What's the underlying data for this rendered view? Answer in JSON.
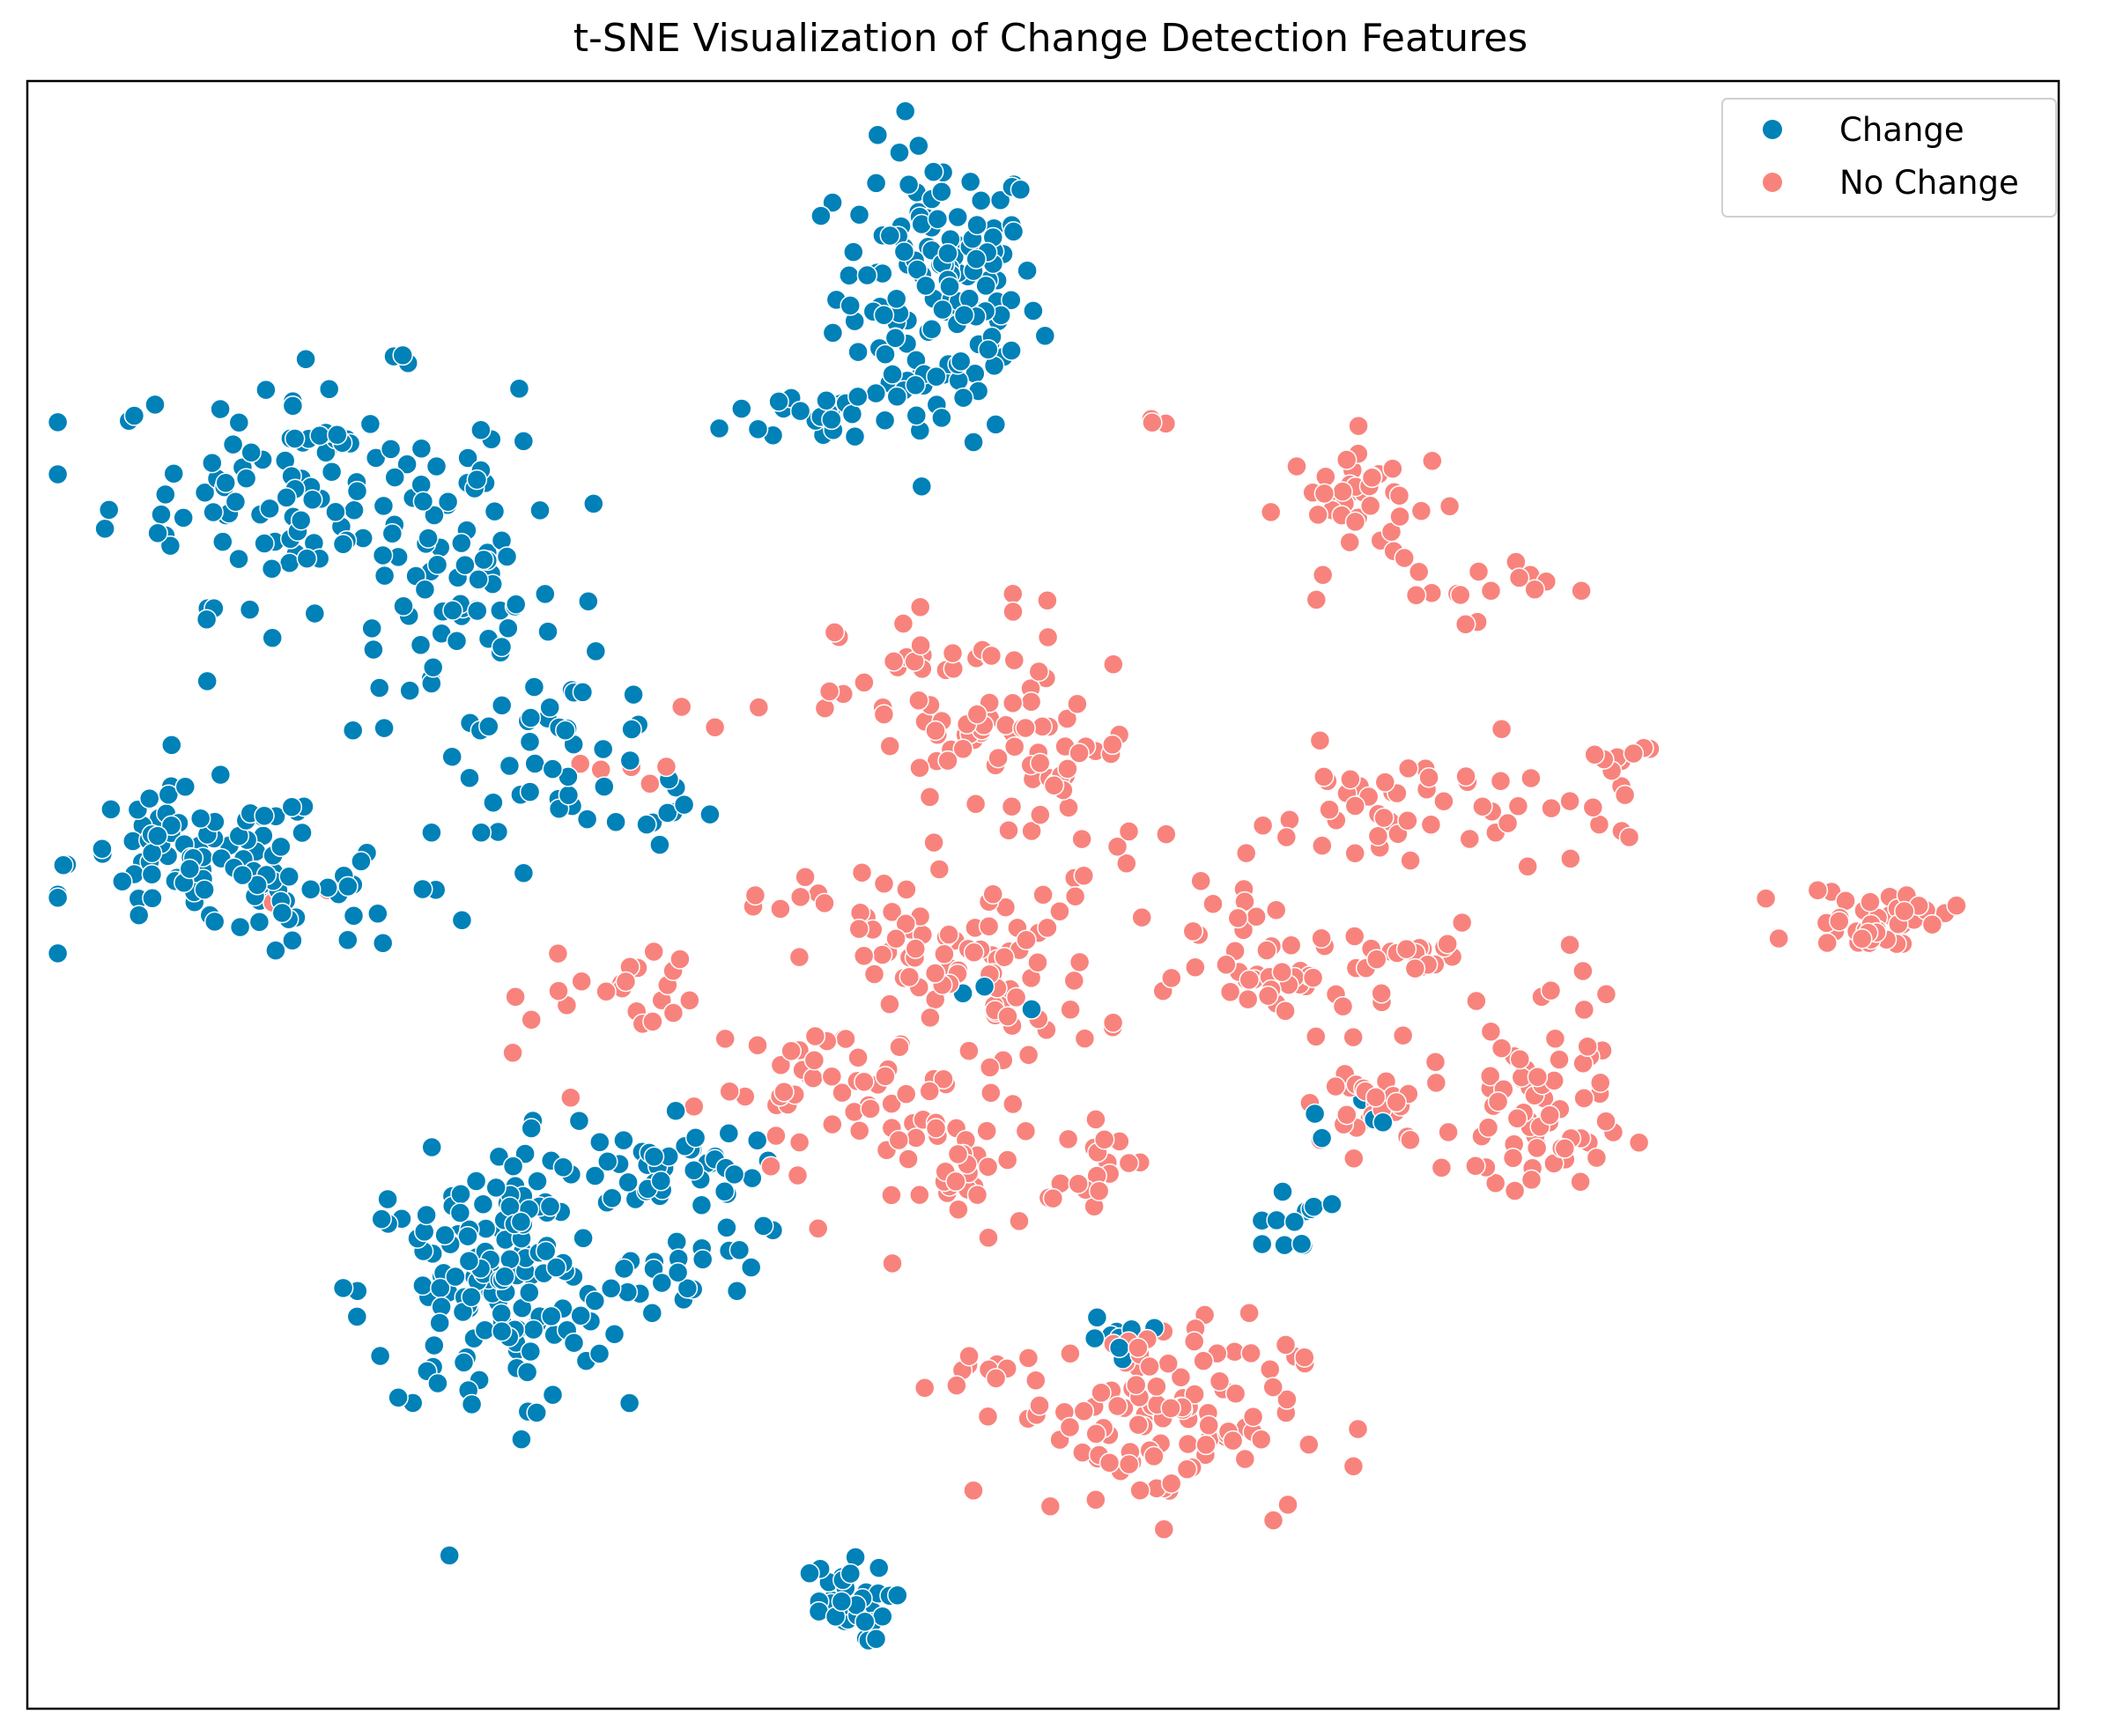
{
  "chart_data": {
    "type": "scatter",
    "title": "t-SNE Visualization of Change Detection Features",
    "xlabel": "",
    "ylabel": "",
    "axis_ticks": false,
    "grid": false,
    "legend_position": "top-right",
    "colors": {
      "Change": "#0081b8",
      "No Change": "#f8837d"
    },
    "series": [
      {
        "name": "Change",
        "clusters": [
          {
            "cx": 0.448,
            "cy": 0.869,
            "sx": 0.025,
            "sy": 0.045,
            "n": 150
          },
          {
            "cx": 0.395,
            "cy": 0.795,
            "sx": 0.025,
            "sy": 0.01,
            "n": 25
          },
          {
            "cx": 0.14,
            "cy": 0.75,
            "sx": 0.05,
            "sy": 0.035,
            "n": 120
          },
          {
            "cx": 0.21,
            "cy": 0.675,
            "sx": 0.025,
            "sy": 0.04,
            "n": 60
          },
          {
            "cx": 0.085,
            "cy": 0.52,
            "sx": 0.032,
            "sy": 0.022,
            "n": 90
          },
          {
            "cx": 0.16,
            "cy": 0.5,
            "sx": 0.035,
            "sy": 0.02,
            "n": 30
          },
          {
            "cx": 0.265,
            "cy": 0.59,
            "sx": 0.025,
            "sy": 0.025,
            "n": 35
          },
          {
            "cx": 0.31,
            "cy": 0.555,
            "sx": 0.02,
            "sy": 0.01,
            "n": 10
          },
          {
            "cx": 0.225,
            "cy": 0.255,
            "sx": 0.03,
            "sy": 0.04,
            "n": 130
          },
          {
            "cx": 0.25,
            "cy": 0.305,
            "sx": 0.012,
            "sy": 0.03,
            "n": 25
          },
          {
            "cx": 0.305,
            "cy": 0.335,
            "sx": 0.025,
            "sy": 0.018,
            "n": 40
          },
          {
            "cx": 0.345,
            "cy": 0.305,
            "sx": 0.012,
            "sy": 0.025,
            "n": 20
          },
          {
            "cx": 0.3,
            "cy": 0.26,
            "sx": 0.02,
            "sy": 0.015,
            "n": 15
          },
          {
            "cx": 0.4,
            "cy": 0.065,
            "sx": 0.012,
            "sy": 0.012,
            "n": 35
          },
          {
            "cx": 0.54,
            "cy": 0.225,
            "sx": 0.008,
            "sy": 0.008,
            "n": 10
          },
          {
            "cx": 0.62,
            "cy": 0.3,
            "sx": 0.01,
            "sy": 0.01,
            "n": 12
          },
          {
            "cx": 0.48,
            "cy": 0.44,
            "sx": 0.01,
            "sy": 0.008,
            "n": 5
          },
          {
            "cx": 0.65,
            "cy": 0.36,
            "sx": 0.01,
            "sy": 0.01,
            "n": 5
          }
        ]
      },
      {
        "name": "No Change",
        "clusters": [
          {
            "cx": 0.46,
            "cy": 0.61,
            "sx": 0.03,
            "sy": 0.035,
            "n": 70
          },
          {
            "cx": 0.515,
            "cy": 0.575,
            "sx": 0.02,
            "sy": 0.04,
            "n": 30
          },
          {
            "cx": 0.47,
            "cy": 0.45,
            "sx": 0.03,
            "sy": 0.03,
            "n": 80
          },
          {
            "cx": 0.43,
            "cy": 0.48,
            "sx": 0.012,
            "sy": 0.015,
            "n": 15
          },
          {
            "cx": 0.395,
            "cy": 0.38,
            "sx": 0.03,
            "sy": 0.02,
            "n": 40
          },
          {
            "cx": 0.46,
            "cy": 0.33,
            "sx": 0.025,
            "sy": 0.02,
            "n": 40
          },
          {
            "cx": 0.53,
            "cy": 0.34,
            "sx": 0.01,
            "sy": 0.01,
            "n": 15
          },
          {
            "cx": 0.585,
            "cy": 0.48,
            "sx": 0.012,
            "sy": 0.015,
            "n": 12
          },
          {
            "cx": 0.66,
            "cy": 0.74,
            "sx": 0.02,
            "sy": 0.02,
            "n": 40
          },
          {
            "cx": 0.71,
            "cy": 0.69,
            "sx": 0.02,
            "sy": 0.01,
            "n": 15
          },
          {
            "cx": 0.68,
            "cy": 0.55,
            "sx": 0.04,
            "sy": 0.02,
            "n": 50
          },
          {
            "cx": 0.785,
            "cy": 0.575,
            "sx": 0.012,
            "sy": 0.015,
            "n": 12
          },
          {
            "cx": 0.625,
            "cy": 0.45,
            "sx": 0.025,
            "sy": 0.015,
            "n": 40
          },
          {
            "cx": 0.69,
            "cy": 0.46,
            "sx": 0.01,
            "sy": 0.01,
            "n": 15
          },
          {
            "cx": 0.66,
            "cy": 0.37,
            "sx": 0.02,
            "sy": 0.015,
            "n": 30
          },
          {
            "cx": 0.74,
            "cy": 0.36,
            "sx": 0.018,
            "sy": 0.03,
            "n": 60
          },
          {
            "cx": 0.765,
            "cy": 0.43,
            "sx": 0.012,
            "sy": 0.015,
            "n": 10
          },
          {
            "cx": 0.91,
            "cy": 0.485,
            "sx": 0.018,
            "sy": 0.01,
            "n": 40
          },
          {
            "cx": 0.555,
            "cy": 0.18,
            "sx": 0.035,
            "sy": 0.03,
            "n": 110
          },
          {
            "cx": 0.465,
            "cy": 0.205,
            "sx": 0.012,
            "sy": 0.008,
            "n": 10
          },
          {
            "cx": 0.11,
            "cy": 0.5,
            "sx": 0.02,
            "sy": 0.005,
            "n": 2
          },
          {
            "cx": 0.32,
            "cy": 0.585,
            "sx": 0.02,
            "sy": 0.015,
            "n": 8
          },
          {
            "cx": 0.3,
            "cy": 0.44,
            "sx": 0.015,
            "sy": 0.015,
            "n": 18
          },
          {
            "cx": 0.38,
            "cy": 0.5,
            "sx": 0.02,
            "sy": 0.008,
            "n": 8
          },
          {
            "cx": 0.55,
            "cy": 0.79,
            "sx": 0.005,
            "sy": 0.005,
            "n": 3
          },
          {
            "cx": 0.25,
            "cy": 0.39,
            "sx": 0.02,
            "sy": 0.03,
            "n": 6
          }
        ]
      }
    ]
  }
}
